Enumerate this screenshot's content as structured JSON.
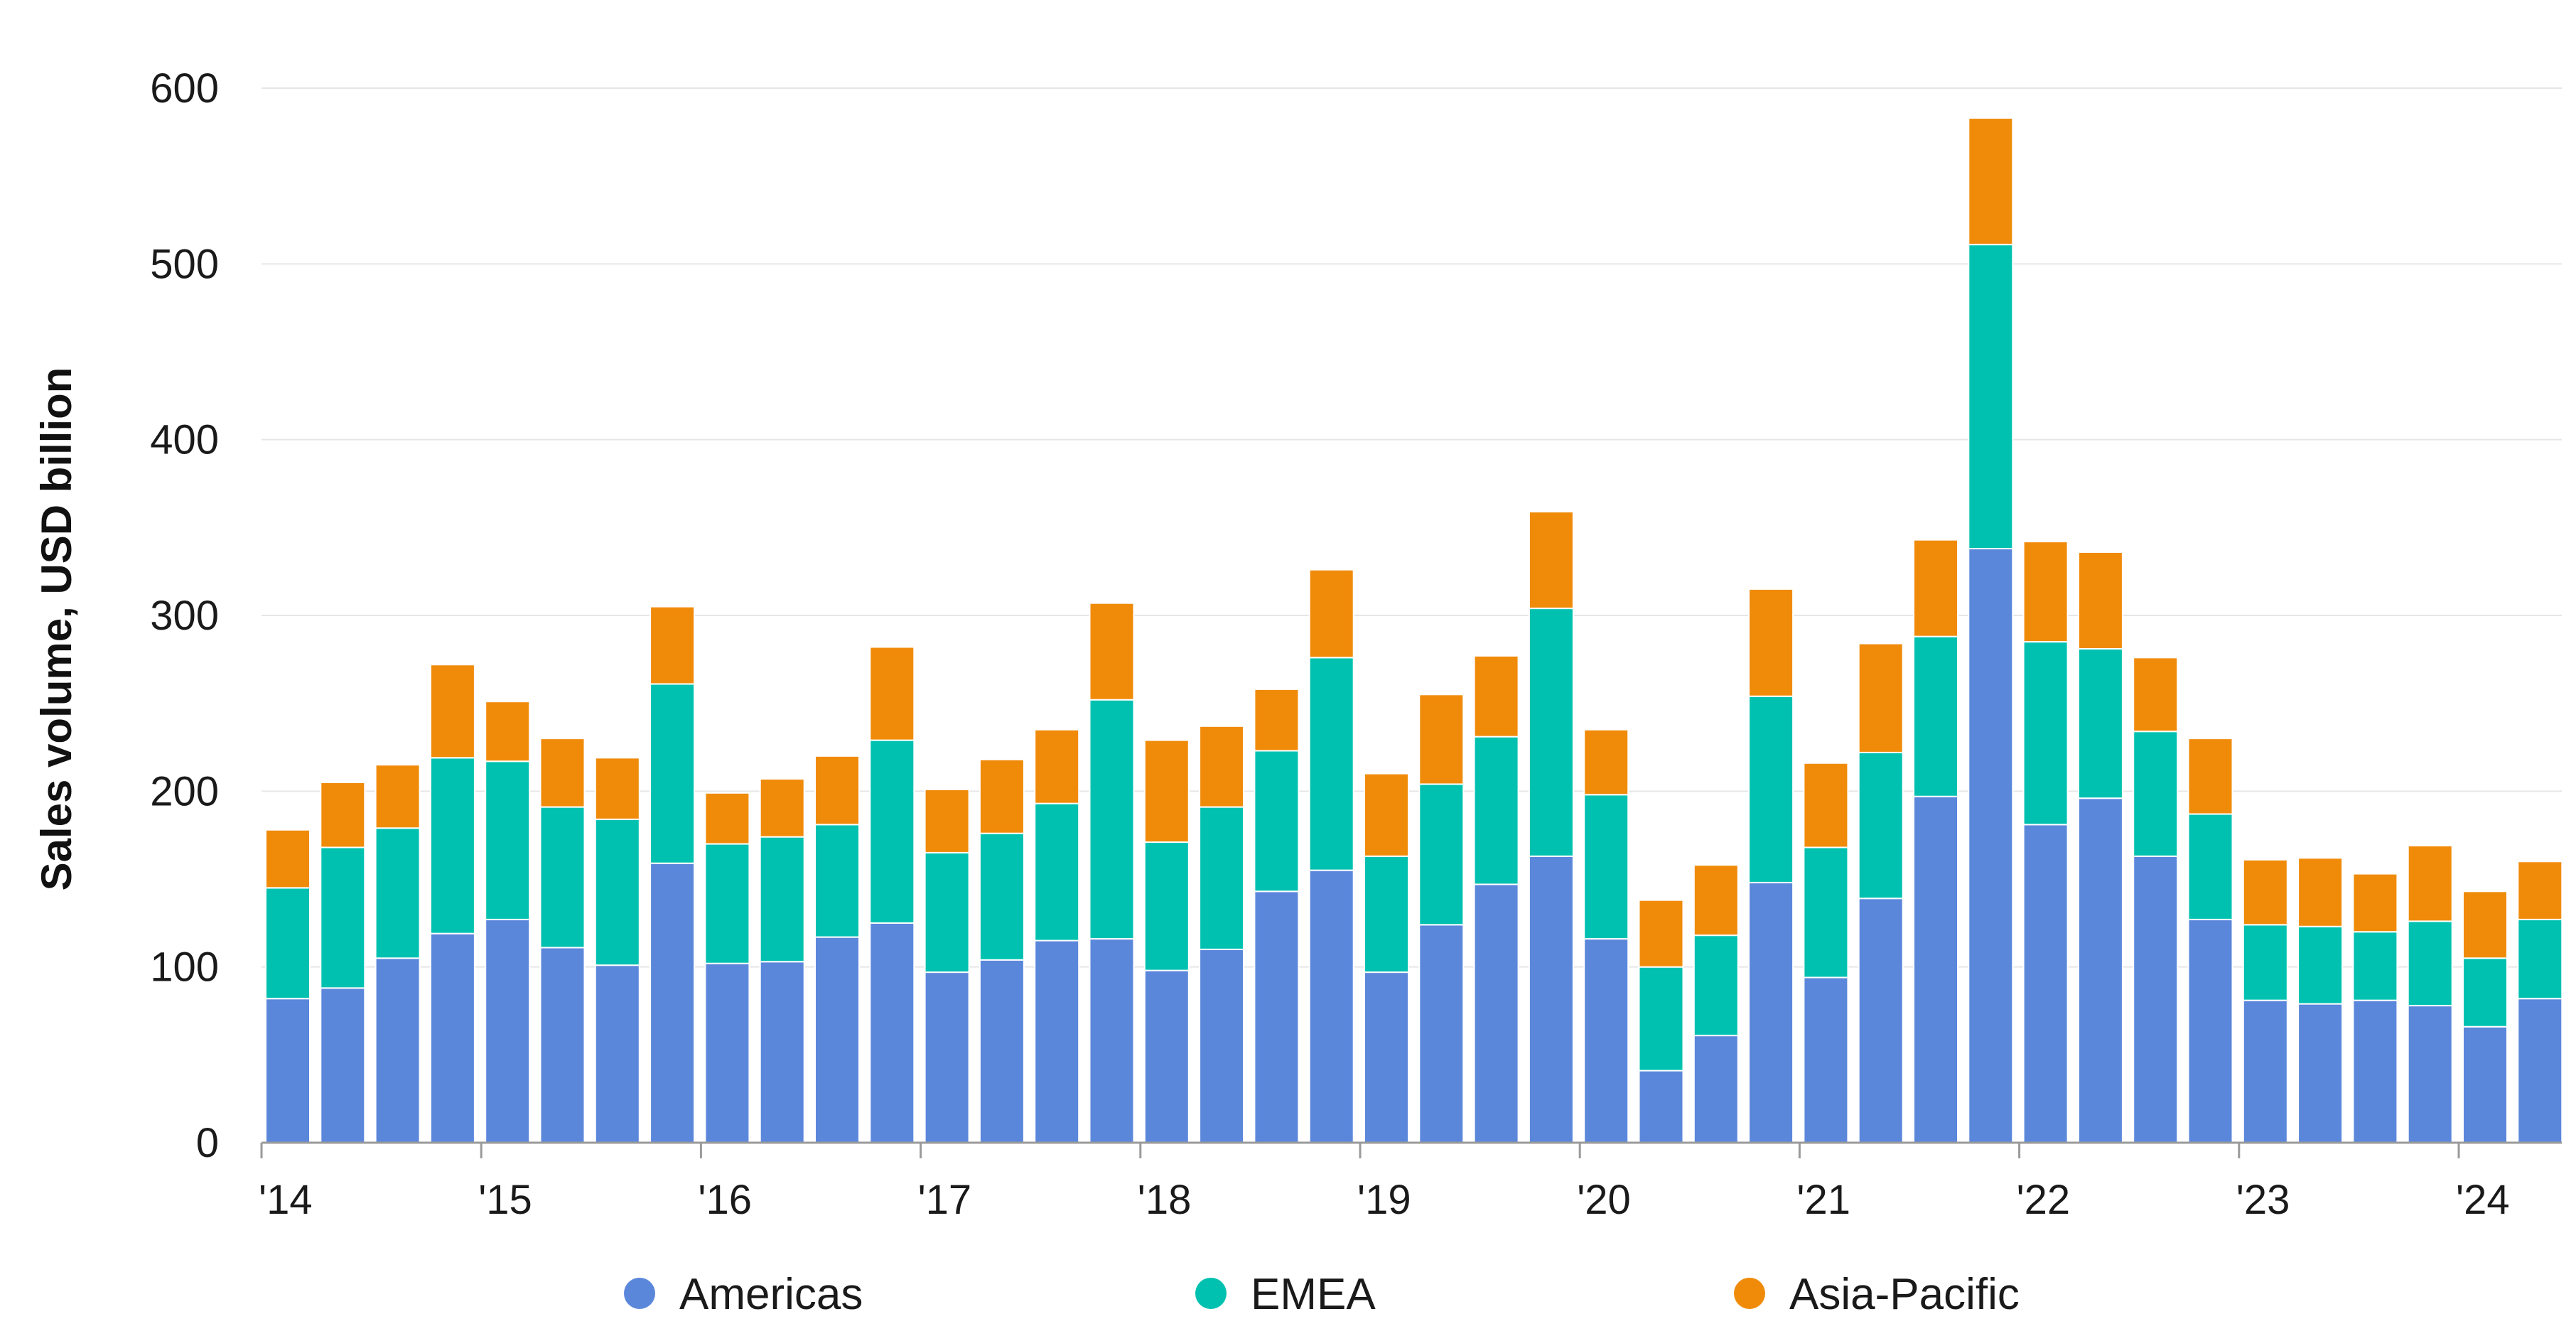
{
  "chart_data": {
    "type": "bar",
    "stacked": true,
    "title": "",
    "xlabel": "",
    "ylabel": "Sales volume, USD billion",
    "ylim": [
      0,
      600
    ],
    "yticks": [
      0,
      100,
      200,
      300,
      400,
      500,
      600
    ],
    "grid": true,
    "legend_position": "bottom",
    "year_labels": [
      "'14",
      "'15",
      "'16",
      "'17",
      "'18",
      "'19",
      "'20",
      "'21",
      "'22",
      "'23",
      "'24"
    ],
    "categories": [
      "Q1 2014",
      "Q2 2014",
      "Q3 2014",
      "Q4 2014",
      "Q1 2015",
      "Q2 2015",
      "Q3 2015",
      "Q4 2015",
      "Q1 2016",
      "Q2 2016",
      "Q3 2016",
      "Q4 2016",
      "Q1 2017",
      "Q2 2017",
      "Q3 2017",
      "Q4 2017",
      "Q1 2018",
      "Q2 2018",
      "Q3 2018",
      "Q4 2018",
      "Q1 2019",
      "Q2 2019",
      "Q3 2019",
      "Q4 2019",
      "Q1 2020",
      "Q2 2020",
      "Q3 2020",
      "Q4 2020",
      "Q1 2021",
      "Q2 2021",
      "Q3 2021",
      "Q4 2021",
      "Q1 2022",
      "Q2 2022",
      "Q3 2022",
      "Q4 2022",
      "Q1 2023",
      "Q2 2023",
      "Q3 2023",
      "Q4 2023",
      "Q1 2024",
      "Q2 2024"
    ],
    "series": [
      {
        "name": "Americas",
        "color": "#5b87db",
        "values": [
          82,
          88,
          105,
          119,
          127,
          111,
          101,
          159,
          102,
          103,
          117,
          125,
          97,
          104,
          115,
          116,
          98,
          110,
          143,
          155,
          97,
          124,
          147,
          163,
          116,
          41,
          61,
          148,
          94,
          139,
          197,
          338,
          181,
          196,
          163,
          127,
          81,
          79,
          81,
          78,
          66,
          82
        ]
      },
      {
        "name": "EMEA",
        "color": "#00c1b0",
        "values": [
          63,
          80,
          74,
          100,
          90,
          80,
          83,
          102,
          68,
          71,
          64,
          104,
          68,
          72,
          78,
          136,
          73,
          81,
          80,
          121,
          66,
          80,
          84,
          141,
          82,
          59,
          57,
          106,
          74,
          83,
          91,
          173,
          104,
          85,
          71,
          60,
          43,
          44,
          39,
          48,
          39,
          45
        ]
      },
      {
        "name": "Asia-Pacific",
        "color": "#f08b0a",
        "values": [
          33,
          37,
          36,
          53,
          34,
          39,
          35,
          44,
          29,
          33,
          39,
          53,
          36,
          42,
          42,
          55,
          58,
          46,
          35,
          50,
          47,
          51,
          46,
          55,
          37,
          38,
          40,
          61,
          48,
          62,
          55,
          72,
          57,
          55,
          42,
          43,
          37,
          39,
          33,
          43,
          38,
          33
        ]
      }
    ]
  }
}
